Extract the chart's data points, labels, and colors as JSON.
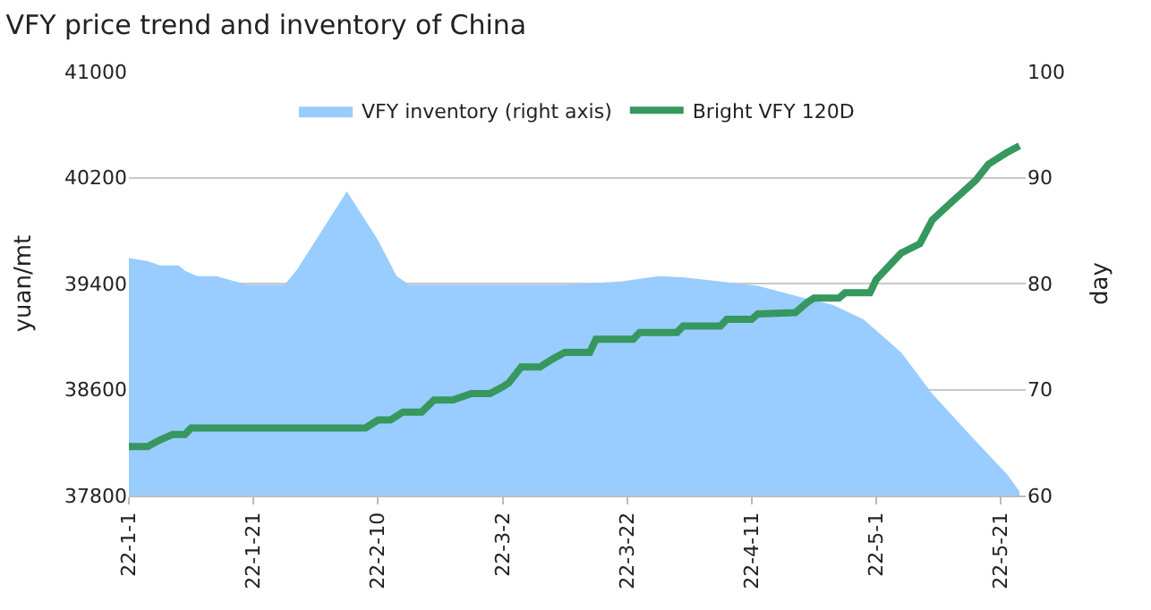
{
  "chart_data": {
    "type": "line",
    "title": "VFY price trend and inventory of China",
    "ylabel": "yuan/mt",
    "y2label": "day",
    "xlim": [
      "--01-01",
      "--05-25"
    ],
    "xticks": [
      {
        "value": "--01-01",
        "label": "22-1-1"
      },
      {
        "value": "--01-21",
        "label": "22-1-21"
      },
      {
        "value": "--02-10",
        "label": "22-2-10"
      },
      {
        "value": "--03-02",
        "label": "22-3-2"
      },
      {
        "value": "--03-22",
        "label": "22-3-22"
      },
      {
        "value": "--04-11",
        "label": "22-4-11"
      },
      {
        "value": "--05-01",
        "label": "22-5-1"
      },
      {
        "value": "--05-21",
        "label": "22-5-21"
      }
    ],
    "ylim": [
      37800,
      41000
    ],
    "yticks": [
      37800,
      38600,
      39400,
      40200,
      41000
    ],
    "y2lim": [
      60,
      100
    ],
    "y2ticks": [
      60,
      70,
      80,
      90,
      100
    ],
    "grid": "y",
    "legend": "top",
    "series": [
      {
        "name": "VFY inventory (right axis)",
        "type": "area",
        "axis": "y2",
        "color": "#99ccff",
        "x": [
          "--01-01",
          "--01-04",
          "--01-06",
          "--01-09",
          "--01-10",
          "--01-12",
          "--01-15",
          "--01-20",
          "--01-26",
          "--01-28",
          "--02-05",
          "--02-10",
          "--02-13",
          "--02-15",
          "--03-12",
          "--03-21",
          "--03-27",
          "--03-31",
          "--04-06",
          "--04-12",
          "--04-19",
          "--04-24",
          "--04-29",
          "--05-05",
          "--05-10",
          "--05-15",
          "--05-18",
          "--05-22",
          "--05-24"
        ],
        "values": [
          82.4,
          82.1,
          81.7,
          81.7,
          81.2,
          80.7,
          80.7,
          79.9,
          79.9,
          81.3,
          88.7,
          84.1,
          80.7,
          79.9,
          79.9,
          80.2,
          80.7,
          80.6,
          80.2,
          79.8,
          78.7,
          78.0,
          76.6,
          73.5,
          69.6,
          66.4,
          64.5,
          62.0,
          60.4
        ]
      },
      {
        "name": "Bright VFY 120D",
        "color": "#36975f",
        "x": [
          "--01-01",
          "--01-04",
          "--01-06",
          "--01-08",
          "--01-10",
          "--01-11",
          "--02-08",
          "--02-10",
          "--02-12",
          "--02-14",
          "--02-17",
          "--02-19",
          "--02-22",
          "--02-25",
          "--02-28",
          "--03-02",
          "--03-03",
          "--03-05",
          "--03-08",
          "--03-10",
          "--03-12",
          "--03-16",
          "--03-17",
          "--03-23",
          "--03-24",
          "--03-30",
          "--03-31",
          "--04-06",
          "--04-07",
          "--04-11",
          "--04-12",
          "--04-18",
          "--04-20",
          "--04-21",
          "--04-25",
          "--04-26",
          "--04-30",
          "--05-01",
          "--05-03",
          "--05-05",
          "--05-08",
          "--05-10",
          "--05-13",
          "--05-17",
          "--05-19",
          "--05-22",
          "--05-24"
        ],
        "values": [
          38170,
          38170,
          38220,
          38260,
          38260,
          38310,
          38310,
          38370,
          38370,
          38430,
          38430,
          38520,
          38520,
          38570,
          38570,
          38620,
          38650,
          38770,
          38770,
          38830,
          38880,
          38880,
          38980,
          38980,
          39030,
          39030,
          39080,
          39080,
          39130,
          39130,
          39170,
          39180,
          39260,
          39290,
          39290,
          39330,
          39330,
          39430,
          39530,
          39630,
          39700,
          39880,
          40010,
          40180,
          40300,
          40390,
          40440
        ]
      }
    ]
  }
}
